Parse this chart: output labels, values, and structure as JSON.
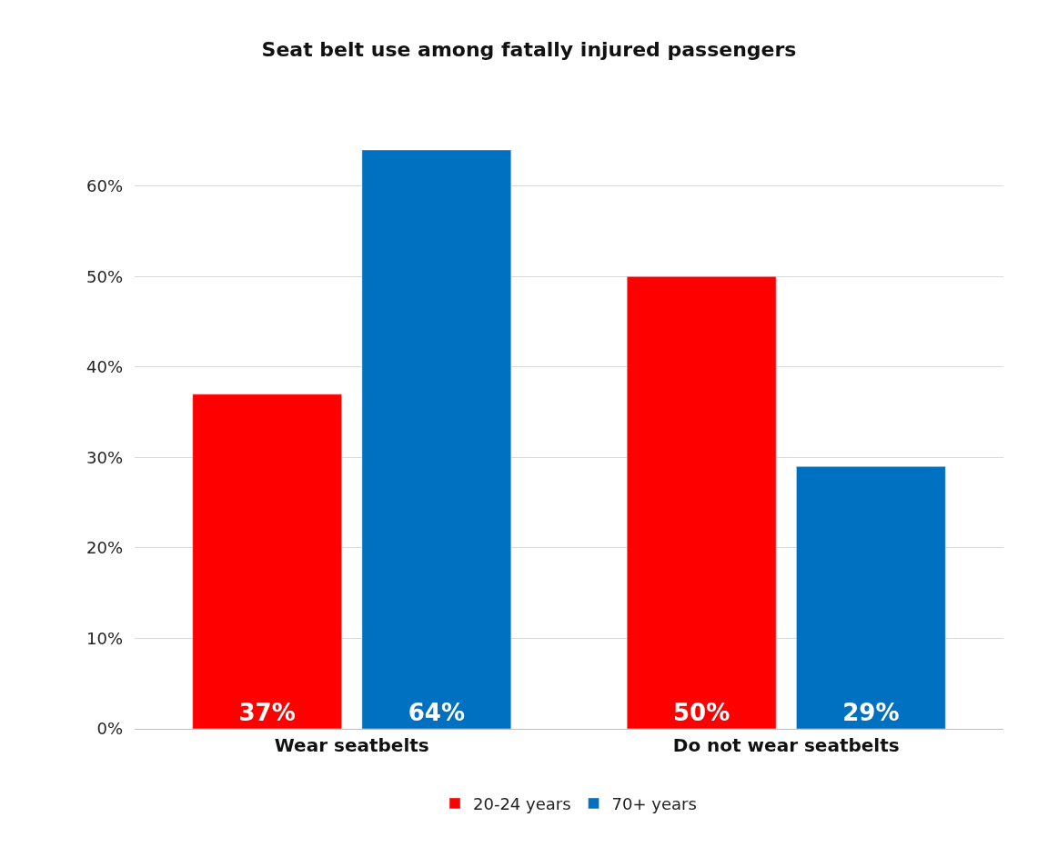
{
  "chart_data": {
    "type": "bar",
    "title": "Seat belt use among fatally injured passengers",
    "categories": [
      "Wear seatbelts",
      "Do not wear seatbelts"
    ],
    "series": [
      {
        "name": "20-24 years",
        "color": "#ff0000",
        "values": [
          37,
          50
        ]
      },
      {
        "name": "70+ years",
        "color": "#0070c0",
        "values": [
          64,
          29
        ]
      }
    ],
    "ylim": [
      0,
      64
    ],
    "yticks": [
      {
        "value": 0,
        "label": "0%"
      },
      {
        "value": 10,
        "label": "10%"
      },
      {
        "value": 20,
        "label": "20%"
      },
      {
        "value": 30,
        "label": "30%"
      },
      {
        "value": 40,
        "label": "40%"
      },
      {
        "value": 50,
        "label": "50%"
      },
      {
        "value": 60,
        "label": "60%"
      }
    ],
    "value_labels": [
      [
        "37%",
        "50%"
      ],
      [
        "64%",
        "29%"
      ]
    ],
    "grid": "y",
    "legend": "bottom"
  }
}
